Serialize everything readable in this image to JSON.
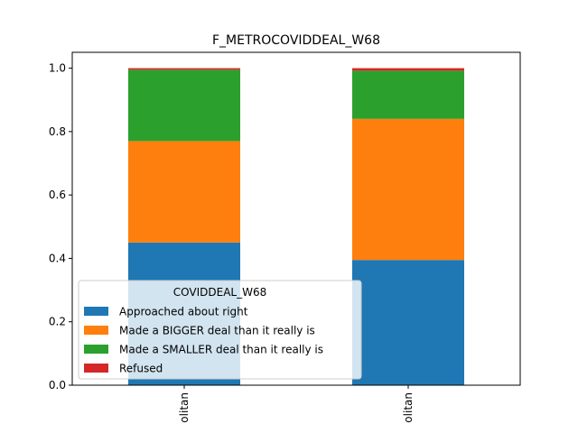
{
  "chart_data": {
    "type": "bar",
    "stacked": true,
    "title": "F_METROCOVIDDEAL_W68",
    "xlabel": "",
    "ylabel": "",
    "categories": [
      "olitan",
      "olitan"
    ],
    "ylim": [
      0,
      1.05
    ],
    "yticks": [
      0.0,
      0.2,
      0.4,
      0.6,
      0.8,
      1.0
    ],
    "ytick_labels": [
      "0.0",
      "0.2",
      "0.4",
      "0.6",
      "0.8",
      "1.0"
    ],
    "grid": false,
    "legend": {
      "title": "COVIDDEAL_W68",
      "placement": "lower-left"
    },
    "series": [
      {
        "name": "Approached about right",
        "color": "#1f77b4",
        "values": [
          0.45,
          0.395
        ]
      },
      {
        "name": "Made a BIGGER deal than it really is",
        "color": "#ff7f0e",
        "values": [
          0.32,
          0.445
        ]
      },
      {
        "name": "Made a SMALLER deal than it really is",
        "color": "#2ca02c",
        "values": [
          0.225,
          0.152
        ]
      },
      {
        "name": "Refused",
        "color": "#d62728",
        "values": [
          0.005,
          0.008
        ]
      }
    ]
  }
}
